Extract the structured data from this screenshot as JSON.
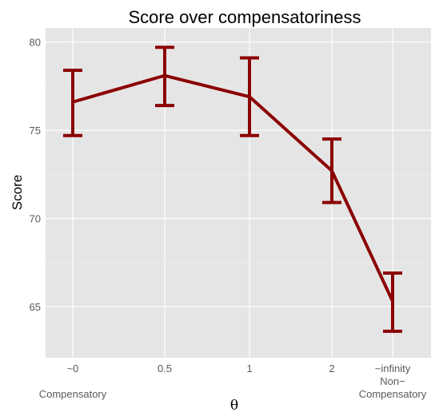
{
  "chart_data": {
    "type": "line",
    "title": "Score over compensatoriness",
    "xlabel": "θ",
    "ylabel": "Score",
    "categories": [
      "~0",
      "0.5",
      "1",
      "2",
      "~infinity"
    ],
    "series": [
      {
        "values": [
          76.6,
          78.1,
          76.9,
          72.7,
          65.3
        ],
        "error_low": [
          74.7,
          76.4,
          74.7,
          70.9,
          63.6
        ],
        "error_high": [
          78.4,
          79.7,
          79.1,
          74.5,
          66.9
        ]
      }
    ],
    "ylim": [
      62.1,
      80.8
    ],
    "yticks": [
      65,
      70,
      75,
      80
    ],
    "grid": true,
    "annotations": {
      "left": "Compensatory",
      "right_line1": "Non−",
      "right_line2": "Compensatory"
    },
    "colors": {
      "line": "#8b0000",
      "panel": "#e5e5e5",
      "grid_major": "#ffffff",
      "grid_minor": "#f2f2f2"
    }
  }
}
